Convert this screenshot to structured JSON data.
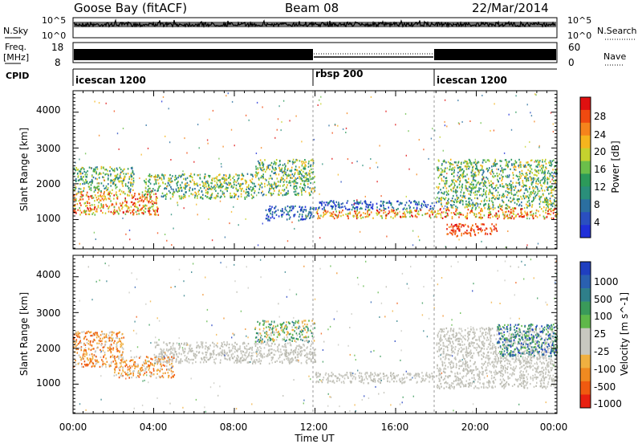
{
  "header": {
    "station": "Goose Bay (fitACF)",
    "beam": "Beam 08",
    "date": "22/Mar/2014"
  },
  "top_panels": {
    "nsky_label": "N.Sky",
    "nsky_tick_top": "10^5",
    "nsky_tick_bottom": "10^0",
    "nsearch_label": "N.Search",
    "nsearch_tick_top": "10^5",
    "nsearch_tick_bottom": "10^0",
    "freq_label_line1": "Freq.",
    "freq_label_line2": "[MHz]",
    "freq_tick_top": "18",
    "freq_tick_bottom": "8",
    "nave_label": "Nave",
    "nave_tick_top": "60",
    "nave_tick_bottom": "0",
    "cpid_label": "CPID"
  },
  "cpid_segments": [
    {
      "label": "icescan 1200",
      "start_hour": 0
    },
    {
      "label": "rbsp 200",
      "start_hour": 12
    },
    {
      "label": "icescan 1200",
      "start_hour": 18
    }
  ],
  "power_colorbar": {
    "label": "Power [dB]",
    "ticks": [
      "28",
      "24",
      "20",
      "16",
      "12",
      "8",
      "4"
    ],
    "colors": [
      "#e01010",
      "#f04a10",
      "#f5841c",
      "#f5b51e",
      "#c5d22e",
      "#6bbf4a",
      "#2c9a5a",
      "#2a8f7a",
      "#2b6fa0",
      "#2a4fc0",
      "#1f2fd8"
    ]
  },
  "velocity_colorbar": {
    "label": "Velocity [m s^-1]",
    "ticks": [
      "1000",
      "500",
      "100",
      "25",
      "-25",
      "-100",
      "-500",
      "-1000"
    ],
    "colors": [
      "#1f3fc0",
      "#2a60b0",
      "#2f7f8a",
      "#3a9a5a",
      "#5fb84a",
      "#c8c8c0",
      "#c8c8c0",
      "#f0b040",
      "#f08a20",
      "#f05a10",
      "#e82010"
    ]
  },
  "chart_data": [
    {
      "type": "heatmap",
      "title": "Power",
      "xlabel": "",
      "ylabel": "Slant Range [km]",
      "x_range_hours": [
        0,
        24
      ],
      "y_range_km": [
        180,
        4600
      ],
      "yticks": [
        "1000",
        "2000",
        "3000",
        "4000"
      ],
      "colorbar": "Power [dB]",
      "scatter_bands": [
        {
          "t0": 0.0,
          "t1": 4.2,
          "r0": 1150,
          "r1": 1800,
          "level": "high"
        },
        {
          "t0": 0.0,
          "t1": 3.0,
          "r0": 1800,
          "r1": 2500,
          "level": "mid"
        },
        {
          "t0": 3.5,
          "t1": 9.0,
          "r0": 1600,
          "r1": 2300,
          "level": "mid"
        },
        {
          "t0": 9.0,
          "t1": 12.0,
          "r0": 1700,
          "r1": 2700,
          "level": "mid"
        },
        {
          "t0": 9.5,
          "t1": 12.0,
          "r0": 1000,
          "r1": 1400,
          "level": "low"
        },
        {
          "t0": 12.0,
          "t1": 18.0,
          "r0": 1050,
          "r1": 1300,
          "level": "high"
        },
        {
          "t0": 12.0,
          "t1": 18.0,
          "r0": 1300,
          "r1": 1550,
          "level": "low"
        },
        {
          "t0": 18.0,
          "t1": 24.0,
          "r0": 1050,
          "r1": 1350,
          "level": "high"
        },
        {
          "t0": 18.0,
          "t1": 24.0,
          "r0": 1350,
          "r1": 2700,
          "level": "mid"
        },
        {
          "t0": 18.5,
          "t1": 21.0,
          "r0": 550,
          "r1": 900,
          "level": "peak"
        }
      ]
    },
    {
      "type": "heatmap",
      "title": "Velocity",
      "xlabel": "Time UT",
      "ylabel": "Slant Range [km]",
      "x_range_hours": [
        0,
        24
      ],
      "y_range_km": [
        180,
        4600
      ],
      "xticks": [
        "00:00",
        "04:00",
        "08:00",
        "12:00",
        "16:00",
        "20:00",
        "00:00"
      ],
      "yticks": [
        "1000",
        "2000",
        "3000",
        "4000"
      ],
      "colorbar": "Velocity [m s^-1]",
      "scatter_bands": [
        {
          "t0": 0.0,
          "t1": 2.5,
          "r0": 1500,
          "r1": 2500,
          "level": "away"
        },
        {
          "t0": 2.0,
          "t1": 5.0,
          "r0": 1200,
          "r1": 1800,
          "level": "away"
        },
        {
          "t0": 4.0,
          "t1": 12.0,
          "r0": 1600,
          "r1": 2200,
          "level": "ground"
        },
        {
          "t0": 9.0,
          "t1": 12.0,
          "r0": 2200,
          "r1": 2800,
          "level": "mixed"
        },
        {
          "t0": 12.0,
          "t1": 18.0,
          "r0": 1050,
          "r1": 1350,
          "level": "ground"
        },
        {
          "t0": 18.0,
          "t1": 24.0,
          "r0": 900,
          "r1": 2600,
          "level": "ground"
        },
        {
          "t0": 21.0,
          "t1": 24.0,
          "r0": 1800,
          "r1": 2700,
          "level": "toward"
        }
      ]
    }
  ]
}
